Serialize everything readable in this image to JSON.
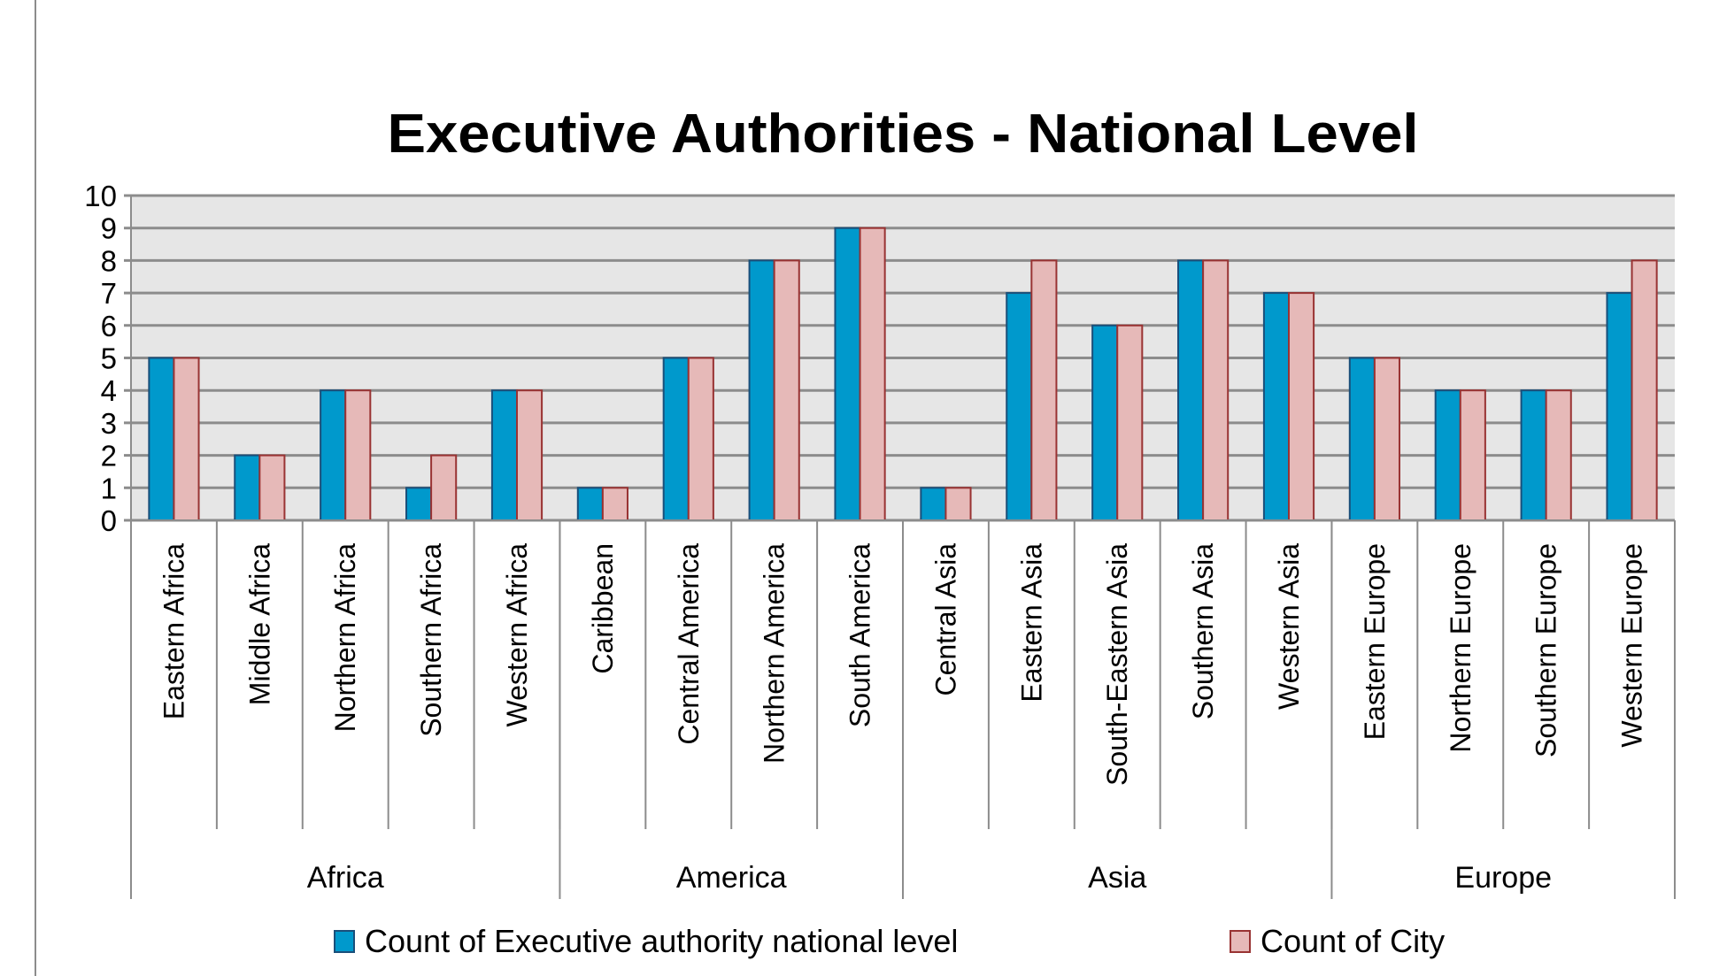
{
  "chart_data": {
    "type": "bar",
    "title": "Executive Authorities - National Level",
    "xlabel": "",
    "ylabel": "",
    "ylim": [
      0,
      10
    ],
    "yticks": [
      "0",
      "1",
      "2",
      "3",
      "4",
      "5",
      "6",
      "7",
      "8",
      "9",
      "10"
    ],
    "grid": true,
    "legend_position": "bottom",
    "categories": [
      "Eastern Africa",
      "Middle Africa",
      "Northern Africa",
      "Southern Africa",
      "Western Africa",
      "Caribbean",
      "Central America",
      "Northern America",
      "South America",
      "Central Asia",
      "Eastern Asia",
      "South-Eastern Asia",
      "Southern Asia",
      "Western Asia",
      "Eastern Europe",
      "Northern Europe",
      "Southern Europe",
      "Western Europe"
    ],
    "groups": [
      {
        "label": "Africa",
        "count": 5
      },
      {
        "label": "America",
        "count": 4
      },
      {
        "label": "Asia",
        "count": 5
      },
      {
        "label": "Europe",
        "count": 4
      }
    ],
    "series": [
      {
        "name": "Count of Executive authority national level",
        "color": "#0099cc",
        "border": "#1a4f7a",
        "values": [
          5,
          2,
          4,
          1,
          4,
          1,
          5,
          8,
          9,
          1,
          7,
          6,
          8,
          7,
          5,
          4,
          4,
          7
        ]
      },
      {
        "name": "Count of City",
        "color": "#e6b9b8",
        "border": "#993333",
        "values": [
          5,
          2,
          4,
          2,
          4,
          1,
          5,
          8,
          9,
          1,
          8,
          6,
          8,
          7,
          5,
          4,
          4,
          8
        ]
      }
    ],
    "colors": {
      "plot_background": "#e6e6e6",
      "gridline": "#8c8c8c",
      "axis": "#8c8c8c"
    }
  }
}
